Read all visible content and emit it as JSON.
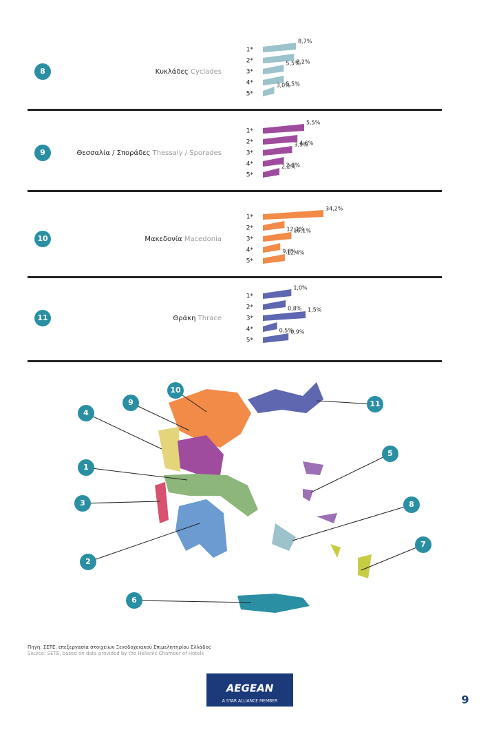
{
  "chart_data": [
    {
      "type": "bar",
      "number": "8",
      "title": "Κυκλάδες",
      "title_en": "Cyclades",
      "color": "#9cc2cc",
      "categories": [
        "1*",
        "2*",
        "3*",
        "4*",
        "5*"
      ],
      "values": [
        8.7,
        8.2,
        5.5,
        5.5,
        3.0
      ],
      "value_labels": [
        "8,7%",
        "8,2%",
        "5,5%",
        "5,5%",
        "3,0%"
      ]
    },
    {
      "type": "bar",
      "number": "9",
      "title": "Θεσσαλία / Σποράδες",
      "title_en": "Thessaly / Sporades",
      "color": "#a04c9e",
      "categories": [
        "1*",
        "2*",
        "3*",
        "4*",
        "5*"
      ],
      "values": [
        5.5,
        4.6,
        3.9,
        2.8,
        2.2
      ],
      "value_labels": [
        "5,5%",
        "4,6%",
        "3,9%",
        "2,8%",
        "2,2%"
      ]
    },
    {
      "type": "bar",
      "number": "10",
      "title": "Μακεδονία",
      "title_en": "Macedonia",
      "color": "#f28a48",
      "categories": [
        "1*",
        "2*",
        "3*",
        "4*",
        "5*"
      ],
      "values": [
        34.2,
        12.2,
        16.1,
        9.8,
        12.4
      ],
      "value_labels": [
        "34,2%",
        "12,2%",
        "16,1%",
        "9,8%",
        "12,4%"
      ]
    },
    {
      "type": "bar",
      "number": "11",
      "title": "Θράκη",
      "title_en": "Thrace",
      "color": "#5e67b0",
      "categories": [
        "1*",
        "2*",
        "3*",
        "4*",
        "5*"
      ],
      "values": [
        1.0,
        0.8,
        1.5,
        0.5,
        0.9
      ],
      "value_labels": [
        "1,0%",
        "0,8%",
        "1,5%",
        "0,5%",
        "0,9%"
      ]
    }
  ],
  "map": {
    "markers": [
      "10",
      "9",
      "11",
      "4",
      "1",
      "5",
      "3",
      "8",
      "2",
      "7",
      "6"
    ]
  },
  "source": {
    "greek": "Πηγή: ΣΕΤΕ, επεξεργασία στοιχείων Ξενοδοχειακού Επιμελητηρίου Ελλάδος",
    "english": "Source: SETE, based on data provided by the Hellenic Chamber of Hotels"
  },
  "footer": {
    "logo": "AEGEAN",
    "tagline": "A STAR ALLIANCE MEMBER",
    "page": "9"
  }
}
